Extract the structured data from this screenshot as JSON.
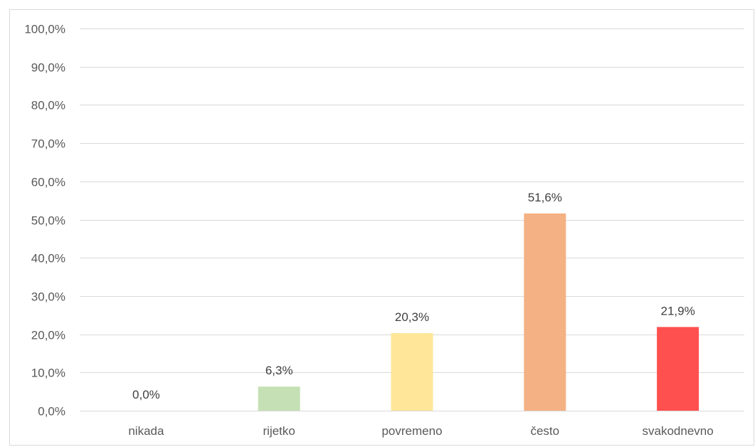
{
  "chart_data": {
    "type": "bar",
    "title": "",
    "xlabel": "",
    "ylabel": "",
    "categories": [
      "nikada",
      "rijetko",
      "povremeno",
      "često",
      "svakodnevno"
    ],
    "values": [
      0.0,
      6.3,
      20.3,
      51.6,
      21.9
    ],
    "data_labels": [
      "0,0%",
      "6,3%",
      "20,3%",
      "51,6%",
      "21,9%"
    ],
    "bar_colors": [
      "#c5e0b4",
      "#c5e0b4",
      "#ffe699",
      "#f4b183",
      "#ff5050"
    ],
    "ylim": [
      0,
      100
    ],
    "y_ticks": [
      0,
      10,
      20,
      30,
      40,
      50,
      60,
      70,
      80,
      90,
      100
    ],
    "y_tick_labels": [
      "0,0%",
      "10,0%",
      "20,0%",
      "30,0%",
      "40,0%",
      "50,0%",
      "60,0%",
      "70,0%",
      "80,0%",
      "90,0%",
      "100,0%"
    ],
    "grid": true,
    "legend": "none"
  }
}
